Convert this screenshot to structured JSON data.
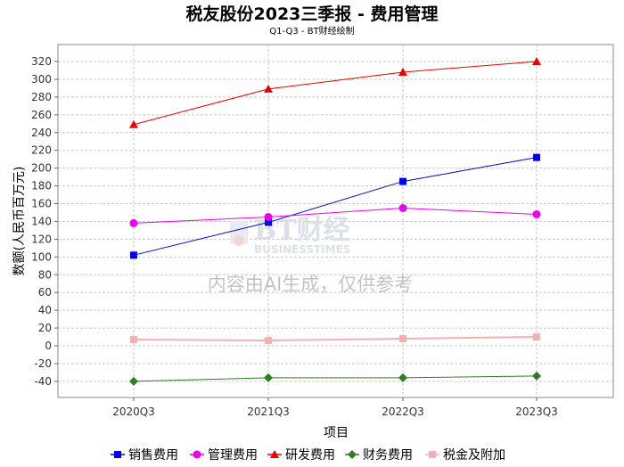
{
  "chart_data": {
    "type": "line",
    "title": "税友股份2023三季报 - 费用管理",
    "subtitle": "Q1-Q3 - BT财经绘制",
    "xlabel": "项目",
    "ylabel": "数额(人民币百万元)",
    "categories": [
      "2020Q3",
      "2021Q3",
      "2022Q3",
      "2023Q3"
    ],
    "ylim": [
      -50,
      330
    ],
    "yticks": [
      -40,
      -20,
      0,
      20,
      40,
      60,
      80,
      100,
      120,
      140,
      160,
      180,
      200,
      220,
      240,
      260,
      280,
      300,
      320
    ],
    "grid": true,
    "legend_position": "bottom",
    "series": [
      {
        "name": "销售费用",
        "color": "#0000ee",
        "marker": "square",
        "values": [
          102,
          139,
          185,
          212
        ]
      },
      {
        "name": "管理费用",
        "color": "#ee00ee",
        "marker": "circle",
        "values": [
          138,
          145,
          155,
          148
        ]
      },
      {
        "name": "研发费用",
        "color": "#ee0000",
        "marker": "triangle",
        "values": [
          249,
          289,
          308,
          320
        ]
      },
      {
        "name": "财务费用",
        "color": "#2e7d1e",
        "marker": "diamond",
        "values": [
          -40,
          -36,
          -36,
          -34
        ]
      },
      {
        "name": "税金及附加",
        "color": "#f4b0b0",
        "marker": "square",
        "values": [
          7,
          6,
          8,
          10
        ]
      }
    ]
  },
  "watermark": {
    "logo_text": "BT财经",
    "logo_sub": "BUSINESSTIMES",
    "notice": "内容由AI生成，仅供参考"
  }
}
